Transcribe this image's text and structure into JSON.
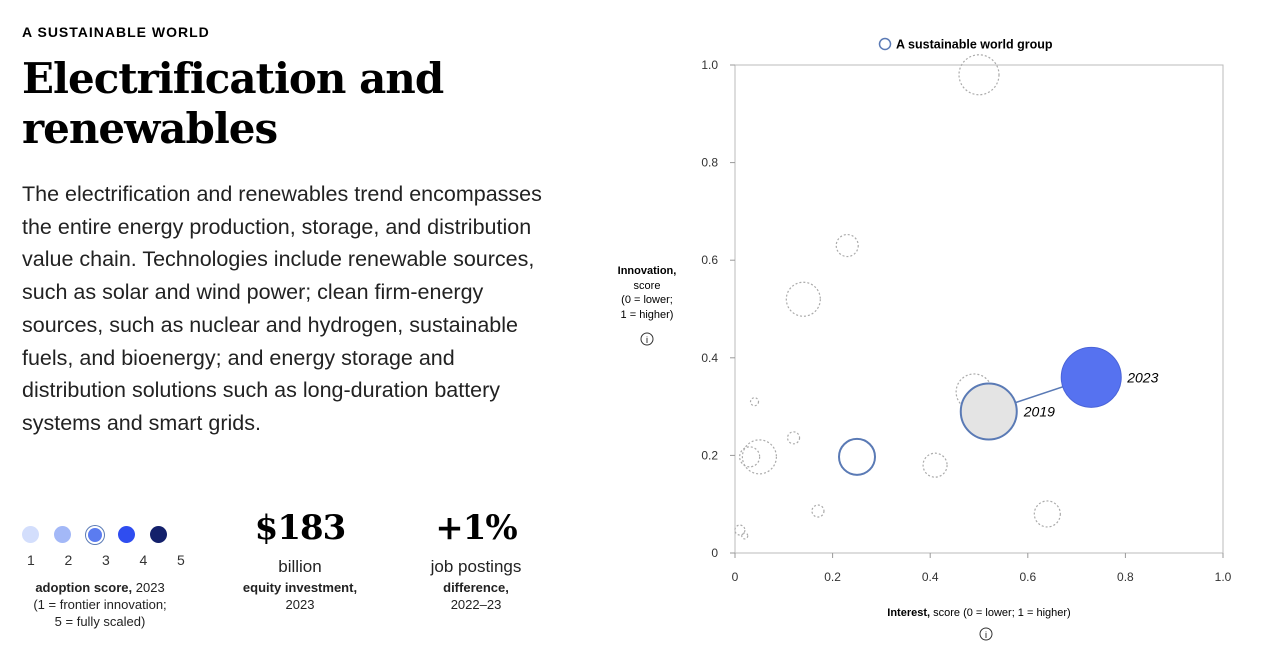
{
  "eyebrow": "A SUSTAINABLE WORLD",
  "title": "Electrification and renewables",
  "description": "The electrification and renewables trend encompasses the entire energy production, storage, and distribution value chain. Technologies include renewable sources, such as solar and wind power; clean firm-energy sources, such as nuclear and hydrogen, sustainable fuels, and bioenergy; and energy storage and distribution solutions such as long-duration battery systems and smart grids.",
  "adoption": {
    "levels": [
      "1",
      "2",
      "3",
      "4",
      "5"
    ],
    "colors": [
      "#d3defc",
      "#a3b8f7",
      "#5b7cf0",
      "#2f4df0",
      "#13206b"
    ],
    "selected": 3,
    "label_bold": "adoption score,",
    "label_year": "2023",
    "note1": "(1 = frontier innovation;",
    "note2": "5 = fully scaled)"
  },
  "investment": {
    "value": "$183",
    "unit": "billion",
    "label_bold": "equity investment,",
    "year": "2023"
  },
  "jobs": {
    "value": "+1%",
    "unit": "job postings",
    "label_bold": "difference,",
    "year": "2022–23"
  },
  "chart_data": {
    "type": "scatter",
    "legend": "A sustainable world group",
    "legend_placement": "top",
    "xlabel_bold": "Interest,",
    "xlabel": "score (0 = lower; 1 = higher)",
    "ylabel_bold": "Innovation,",
    "ylabel1": "score",
    "ylabel2": "(0 = lower;",
    "ylabel3": "1 = higher)",
    "xlim": [
      0,
      1
    ],
    "ylim": [
      0,
      1
    ],
    "xticks": [
      "0",
      "0.2",
      "0.4",
      "0.6",
      "0.8",
      "1.0"
    ],
    "yticks": [
      "0",
      "0.2",
      "0.4",
      "0.6",
      "0.8",
      "1.0"
    ],
    "group_bubbles": [
      {
        "x": 0.5,
        "y": 0.98,
        "size": 20
      },
      {
        "x": 0.23,
        "y": 0.63,
        "size": 11
      },
      {
        "x": 0.14,
        "y": 0.52,
        "size": 17
      },
      {
        "x": 0.49,
        "y": 0.33,
        "size": 18
      },
      {
        "x": 0.05,
        "y": 0.197,
        "size": 17
      },
      {
        "x": 0.03,
        "y": 0.197,
        "size": 10
      },
      {
        "x": 0.04,
        "y": 0.31,
        "size": 4
      },
      {
        "x": 0.12,
        "y": 0.236,
        "size": 6
      },
      {
        "x": 0.41,
        "y": 0.18,
        "size": 12
      },
      {
        "x": 0.17,
        "y": 0.086,
        "size": 6
      },
      {
        "x": 0.64,
        "y": 0.08,
        "size": 13
      },
      {
        "x": 0.01,
        "y": 0.047,
        "size": 5
      },
      {
        "x": 0.02,
        "y": 0.035,
        "size": 3
      }
    ],
    "highlight_bubble": {
      "x": 0.25,
      "y": 0.197,
      "size": 18
    },
    "trend_2019": {
      "label": "2019",
      "x": 0.52,
      "y": 0.29,
      "size": 28
    },
    "trend_2023": {
      "label": "2023",
      "x": 0.73,
      "y": 0.36,
      "size": 30
    },
    "colors": {
      "group": "#aaaaaa",
      "highlight": "#5a7ab5",
      "y2019": "#e4e4e4",
      "y2023": "#5672f0"
    }
  }
}
